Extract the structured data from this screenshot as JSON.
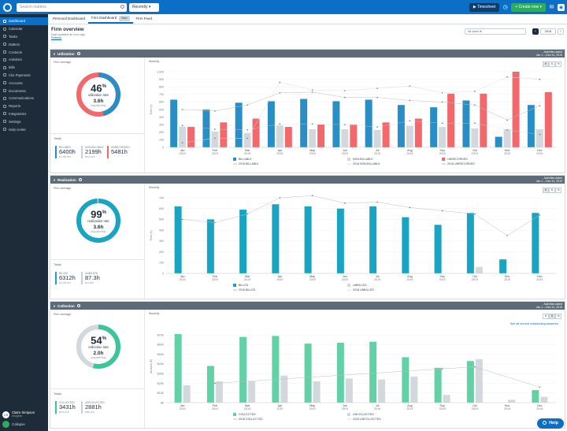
{
  "topbar": {
    "search_placeholder": "Search matters",
    "recently_label": "Recently",
    "timesheet_label": "Timesheet",
    "create_new_label": "Create new"
  },
  "sidebar": {
    "items": [
      {
        "label": "Dashboard",
        "icon": "dashboard-icon",
        "active": true
      },
      {
        "label": "Calendar",
        "icon": "calendar-icon"
      },
      {
        "label": "Tasks",
        "icon": "tasks-icon"
      },
      {
        "label": "Matters",
        "icon": "briefcase-icon"
      },
      {
        "label": "Contacts",
        "icon": "contacts-icon"
      },
      {
        "label": "Activities",
        "icon": "activities-icon"
      },
      {
        "label": "Bills",
        "icon": "bills-icon"
      },
      {
        "label": "Clio Payments",
        "icon": "payments-icon"
      },
      {
        "label": "Accounts",
        "icon": "accounts-icon"
      },
      {
        "label": "Documents",
        "icon": "documents-icon"
      },
      {
        "label": "Communications",
        "icon": "communications-icon"
      },
      {
        "label": "Reports",
        "icon": "reports-icon"
      },
      {
        "label": "Integrations",
        "icon": "integrations-icon"
      },
      {
        "label": "Settings",
        "icon": "settings-icon"
      },
      {
        "label": "Help center",
        "icon": "help-icon"
      }
    ],
    "user": {
      "initials": "CS",
      "name": "Claire Simpson",
      "firm": "Insights"
    },
    "collapse_label": "Collapse"
  },
  "tabs": [
    {
      "label": "Personal Dashboard"
    },
    {
      "label": "Firm Dashboard",
      "badge": "New",
      "selected": true
    },
    {
      "label": "Firm Feed"
    }
  ],
  "overview": {
    "title": "Firm overview",
    "updated": "Last updated an hour ago",
    "refresh": "Refresh",
    "range_select": "All users",
    "year": "2019"
  },
  "sections": {
    "utilization": {
      "title": "Utilization",
      "dates_title": "Activities dated",
      "dates": "Jan 1 – Dec 31, 2019",
      "firm_average_label": "Firm average",
      "monthly_label": "Monthly",
      "pct": "46",
      "pct_label": "utilization rate",
      "hours": "3.6h",
      "hours_sub": "avg/user/day",
      "totals_label": "Totals",
      "totals": [
        {
          "label": "BILLABLE",
          "value": "6400h",
          "sub": "$1,066,451",
          "color": "#2a8ec6"
        },
        {
          "label": "NON-BILLABLE",
          "value": "2199h",
          "sub": "$314,326",
          "color": "#c9d0d6"
        },
        {
          "label": "UNRECORDED",
          "value": "5481h",
          "sub": "",
          "color": "#f2686b"
        }
      ],
      "toggles": [
        "H",
        "$",
        "%"
      ]
    },
    "realization": {
      "title": "Realization",
      "dates_title": "Activities dated",
      "dates": "Jan 1 – Dec 31, 2019",
      "firm_average_label": "Firm average",
      "monthly_label": "Monthly",
      "pct": "99",
      "pct_label": "realization rate",
      "hours": "3.6h",
      "hours_sub": "avg/user/day",
      "totals_label": "Totals",
      "totals": [
        {
          "label": "BILLED",
          "value": "6312h",
          "sub": "$1,063,561",
          "color": "#19a5c2"
        },
        {
          "label": "UNBILLED",
          "value": "87.3h",
          "sub": "$14,560",
          "color": "#c9d0d6"
        }
      ],
      "toggles": [
        "H",
        "$",
        "%"
      ]
    },
    "collection": {
      "title": "Collection",
      "dates_title": "Activities dated",
      "dates": "Jan 1 – Dec 31, 2019",
      "firm_average_label": "Firm average",
      "monthly_label": "Monthly",
      "pct": "54",
      "pct_label": "collection rate",
      "hours": "2.0h",
      "hours_sub": "avg/user/day",
      "totals_label": "Totals",
      "totals": [
        {
          "label": "COLLECTED",
          "value": "3431h",
          "sub": "$579,218",
          "color": "#3cc59b"
        },
        {
          "label": "UNCOLLECTED",
          "value": "2881h",
          "sub": "$484,341",
          "color": "#c9d0d6"
        }
      ],
      "toggles": [
        "H",
        "$",
        "%"
      ],
      "link": "See all current outstanding balances"
    }
  },
  "help_label": "Help",
  "chart_data": [
    {
      "type": "bar",
      "categories": [
        "Jan 2019",
        "Feb 2019",
        "Mar 2019",
        "Apr 2019",
        "May 2019",
        "Jun 2019",
        "Jul 2019",
        "Aug 2019",
        "Sep 2019",
        "Oct 2019",
        "Nov 2019",
        "Dec 2019"
      ],
      "ylabel": "Time (h)",
      "ylim": [
        0,
        1000
      ],
      "yticks": [
        "0",
        "100",
        "200",
        "300",
        "400",
        "500",
        "600",
        "700",
        "800",
        "900",
        "1,000"
      ],
      "series": [
        {
          "name": "BILLABLE",
          "color": "#2a8ec6",
          "values": [
            630,
            500,
            590,
            610,
            640,
            610,
            630,
            560,
            530,
            620,
            140,
            560
          ]
        },
        {
          "name": "NON-BILLABLE",
          "color": "#d3d8dd",
          "values": [
            275,
            210,
            190,
            290,
            240,
            240,
            230,
            285,
            270,
            250,
            240,
            240
          ]
        },
        {
          "name": "UNRECORDED",
          "color": "#f2686b",
          "values": [
            270,
            330,
            380,
            270,
            300,
            300,
            330,
            380,
            710,
            710,
            1000,
            730
          ]
        }
      ],
      "lines": [
        {
          "name": "2018 BILLABLE",
          "values": [
            500,
            480,
            560,
            720,
            730,
            660,
            660,
            620,
            600,
            560,
            360,
            550
          ]
        },
        {
          "name": "2018 NON-BILLABLE",
          "values": [
            290,
            240,
            230,
            310,
            310,
            300,
            270,
            350,
            320,
            320,
            230,
            170
          ]
        },
        {
          "name": "2018 UNRECORDED",
          "values": [
            60,
            120,
            120,
            860,
            760,
            750,
            780,
            810,
            720,
            740,
            930,
            900
          ]
        }
      ]
    },
    {
      "type": "bar",
      "categories": [
        "Jan 2019",
        "Feb 2019",
        "Mar 2019",
        "Apr 2019",
        "May 2019",
        "Jun 2019",
        "Jul 2019",
        "Aug 2019",
        "Sep 2019",
        "Oct 2019",
        "Nov 2019",
        "Dec 2019"
      ],
      "ylabel": "Time (h)",
      "ylim": [
        0,
        700
      ],
      "yticks": [
        "0",
        "100",
        "200",
        "300",
        "400",
        "500",
        "600",
        "700"
      ],
      "series": [
        {
          "name": "BILLED",
          "color": "#19a5c2",
          "values": [
            620,
            500,
            590,
            640,
            620,
            600,
            620,
            520,
            450,
            560,
            130,
            560
          ]
        },
        {
          "name": "UNBILLED",
          "color": "#d3d8dd",
          "values": [
            0,
            0,
            0,
            0,
            0,
            0,
            0,
            0,
            0,
            60,
            0,
            0
          ]
        }
      ],
      "lines": [
        {
          "name": "2018 BILLED",
          "values": [
            500,
            470,
            550,
            700,
            720,
            650,
            660,
            610,
            580,
            550,
            350,
            540
          ]
        },
        {
          "name": "2018 UNBILLED",
          "values": [
            0,
            0,
            0,
            0,
            0,
            0,
            0,
            0,
            0,
            0,
            0,
            0
          ]
        }
      ]
    },
    {
      "type": "bar",
      "categories": [
        "Jan 2019",
        "Feb 2019",
        "Mar 2019",
        "Apr 2019",
        "May 2019",
        "Jun 2019",
        "Jul 2019",
        "Aug 2019",
        "Sep 2019",
        "Oct 2019",
        "Nov 2019",
        "Dec 2019"
      ],
      "ylabel": "Amount ($)",
      "ylim": [
        0,
        75000
      ],
      "yticks": [
        "$0",
        "$10K",
        "$20K",
        "$30K",
        "$40K",
        "$50K",
        "$60K",
        "$70K"
      ],
      "series": [
        {
          "name": "COLLECTED",
          "color": "#63d1a6",
          "values": [
            71000,
            38000,
            68000,
            69000,
            61000,
            62000,
            63000,
            47000,
            36000,
            43000,
            0,
            13000
          ]
        },
        {
          "name": "UNCOLLECTED",
          "color": "#d3d8dd",
          "values": [
            18000,
            22000,
            22000,
            28000,
            22000,
            25000,
            24000,
            27000,
            8000,
            45000,
            3000,
            6000
          ]
        }
      ],
      "lines": [
        {
          "name": "2018 COLLECTED",
          "values": [
            null,
            20000,
            null,
            null,
            null,
            null,
            null,
            null,
            35000,
            37000,
            null,
            16000
          ]
        },
        {
          "name": "2018 UNCOLLECTED",
          "values": [
            null,
            null,
            null,
            null,
            null,
            null,
            null,
            null,
            null,
            null,
            null,
            null
          ]
        }
      ]
    }
  ]
}
